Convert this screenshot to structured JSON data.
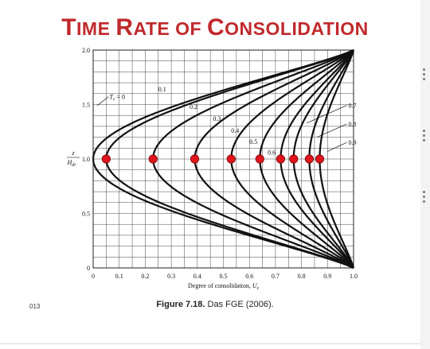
{
  "slide": {
    "title_parts": [
      {
        "text": "T",
        "size": "big"
      },
      {
        "text": "IME ",
        "size": "small"
      },
      {
        "text": "R",
        "size": "big"
      },
      {
        "text": "ATE OF ",
        "size": "small"
      },
      {
        "text": "C",
        "size": "big"
      },
      {
        "text": "ONSOLIDATION",
        "size": "small"
      }
    ],
    "caption_bold": "Figure 7.18.",
    "caption_rest": "  Das FGE (2006).",
    "footer_number": "013"
  },
  "colors": {
    "title": "#c0292c",
    "curve": "#111111",
    "grid": "#444444",
    "marker": "#e0151b",
    "marker_stroke": "#7a0a0c"
  },
  "chart_data": {
    "type": "line",
    "x_label_main": "Degree of consolidation, ",
    "x_label_sub": "z",
    "x_label_var": "U",
    "y_label_top": "z",
    "y_label_bottom": "H",
    "y_label_sub": "dr",
    "xlim": [
      0,
      1.0
    ],
    "ylim": [
      0,
      2.0
    ],
    "x_ticks": [
      "0",
      "0.1",
      "0.2",
      "0.3",
      "0.4",
      "0.5",
      "0.6",
      "0.7",
      "0.8",
      "0.9",
      "1.0"
    ],
    "y_ticks": [
      "0",
      "0.5",
      "1.0",
      "1.5",
      "2.0"
    ],
    "grid": true,
    "curve_apex_note": "each isochrone connects U=1 at z/Hdr=0 and z/Hdr=2 with its minimum at z/Hdr=1",
    "series": [
      {
        "name": "Tv = 0",
        "min_U": 0.0
      },
      {
        "name": "0.1",
        "min_U": 0.05
      },
      {
        "name": "0.2",
        "min_U": 0.23
      },
      {
        "name": "0.3",
        "min_U": 0.39
      },
      {
        "name": "0.4",
        "min_U": 0.53
      },
      {
        "name": "0.5",
        "min_U": 0.64
      },
      {
        "name": "0.6",
        "min_U": 0.72
      },
      {
        "name": "0.7",
        "min_U": 0.77
      },
      {
        "name": "0.8",
        "min_U": 0.83
      },
      {
        "name": "0.9",
        "min_U": 0.87
      }
    ],
    "curve_labels": [
      {
        "text": "T",
        "sub": "v",
        "suffix": " = 0",
        "U": 0.05,
        "z": 1.55,
        "leader": true
      },
      {
        "text": "0.1",
        "U": 0.25,
        "z": 1.62
      },
      {
        "text": "0.2",
        "U": 0.37,
        "z": 1.46
      },
      {
        "text": "0.3",
        "U": 0.46,
        "z": 1.35
      },
      {
        "text": "0.4",
        "U": 0.53,
        "z": 1.24
      },
      {
        "text": "0.5",
        "U": 0.6,
        "z": 1.14
      },
      {
        "text": "0.6",
        "U": 0.67,
        "z": 1.04
      },
      {
        "text": "0.7",
        "U": 0.98,
        "z": 1.47,
        "leader_to_U": 0.82,
        "leader_to_z": 1.33
      },
      {
        "text": "0.8",
        "U": 0.98,
        "z": 1.3,
        "leader_to_U": 0.86,
        "leader_to_z": 1.2
      },
      {
        "text": "0.9",
        "U": 0.98,
        "z": 1.13,
        "leader_to_U": 0.9,
        "leader_to_z": 1.07
      }
    ],
    "markers": [
      {
        "U": 0.05,
        "z": 1.0
      },
      {
        "U": 0.23,
        "z": 1.0
      },
      {
        "U": 0.39,
        "z": 1.0
      },
      {
        "U": 0.53,
        "z": 1.0
      },
      {
        "U": 0.64,
        "z": 1.0
      },
      {
        "U": 0.72,
        "z": 1.0
      },
      {
        "U": 0.77,
        "z": 1.0
      },
      {
        "U": 0.83,
        "z": 1.0
      },
      {
        "U": 0.87,
        "z": 1.0
      }
    ]
  }
}
